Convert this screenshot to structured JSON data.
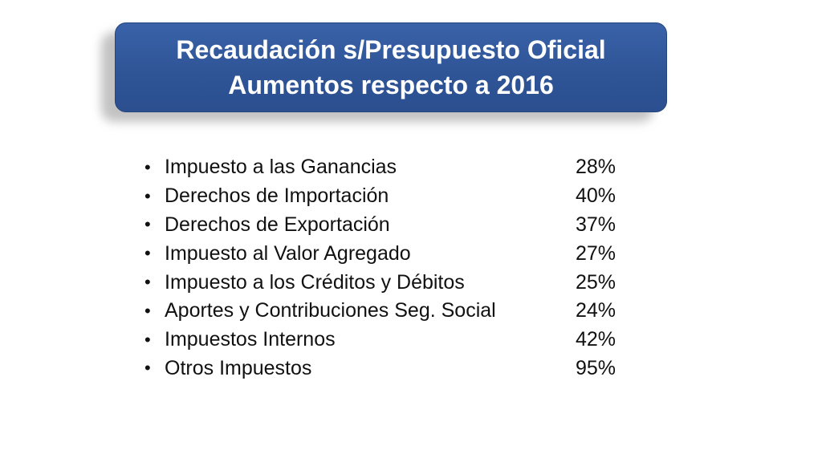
{
  "header": {
    "title_line1": "Recaudación s/Presupuesto Oficial",
    "title_line2": "Aumentos respecto a 2016"
  },
  "items": [
    {
      "label": "Impuesto a las Ganancias",
      "value": "28%"
    },
    {
      "label": "Derechos de Importación",
      "value": "40%"
    },
    {
      "label": "Derechos de Exportación",
      "value": "37%"
    },
    {
      "label": "Impuesto al Valor Agregado",
      "value": "27%"
    },
    {
      "label": "Impuesto a los Créditos y Débitos",
      "value": "25%"
    },
    {
      "label": "Aportes y Contribuciones Seg. Social",
      "value": "24%"
    },
    {
      "label": "Impuestos Internos",
      "value": "42%"
    },
    {
      "label": "Otros Impuestos",
      "value": "95%"
    }
  ],
  "bullet_symbol": "•",
  "colors": {
    "title_background": "#2f5597",
    "title_text": "#ffffff",
    "body_text": "#111111"
  }
}
